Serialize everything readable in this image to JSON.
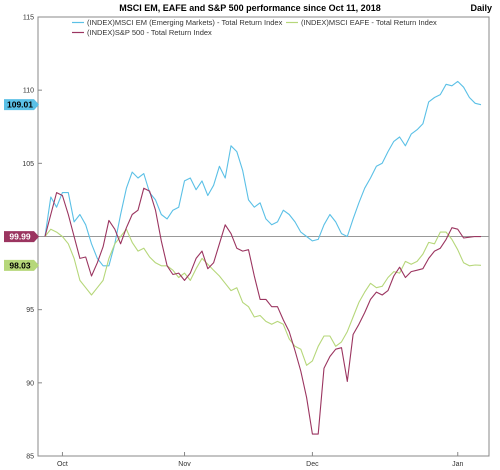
{
  "chart_data": {
    "type": "line",
    "title": "MSCI EM, EAFE and S&P 500 performance since Oct 11, 2018",
    "frequency": "Daily",
    "ylim": [
      85,
      115
    ],
    "yticks": [
      85,
      90,
      95,
      100,
      105,
      110,
      115
    ],
    "xticks": [
      {
        "label": "Oct",
        "x": 3
      },
      {
        "label": "Nov",
        "x": 24
      },
      {
        "label": "Dec",
        "x": 46
      },
      {
        "label": "Jan",
        "x": 71
      }
    ],
    "grid": false,
    "legend_position": "top-left",
    "reference_line": 100,
    "series": [
      {
        "name": "(INDEX)MSCI EM (Emerging Markets) - Total Return Index",
        "color": "#5bc0e6",
        "last_value_label": "109.01",
        "values": [
          100,
          102.7,
          102,
          103,
          103,
          101,
          101.5,
          100.8,
          99.5,
          98.5,
          98,
          98,
          99.5,
          101.5,
          103.3,
          104.4,
          104,
          104.3,
          103,
          102.5,
          101.5,
          101.2,
          101.8,
          102,
          103.8,
          104,
          103.2,
          103.8,
          102.8,
          103.5,
          104.8,
          104,
          106.2,
          105.8,
          104.5,
          102.5,
          102,
          102.3,
          101.2,
          100.8,
          101,
          101.8,
          101.5,
          101,
          100.3,
          100,
          99.7,
          99.8,
          100.8,
          101.5,
          101,
          100.2,
          100,
          101.2,
          102.3,
          103.3,
          104,
          104.8,
          105,
          105.8,
          106.5,
          106.8,
          106.2,
          107,
          107.3,
          107.7,
          109.2,
          109.5,
          109.7,
          110.4,
          110.3,
          110.6,
          110.2,
          109.5,
          109.1,
          109.01
        ]
      },
      {
        "name": "(INDEX)MSCI EAFE - Total Return Index",
        "color": "#b6d77a",
        "last_value_label": "98.03",
        "values": [
          100,
          100.5,
          100.3,
          100,
          99.5,
          98.5,
          97,
          96.5,
          96,
          96.5,
          97,
          98.5,
          99.5,
          100,
          100.5,
          99.6,
          99,
          99.2,
          98.6,
          98.2,
          98,
          98,
          97.7,
          97.2,
          97.5,
          97,
          97.8,
          98.5,
          98.1,
          97.7,
          97.3,
          96.8,
          96.3,
          96.5,
          95.5,
          95.2,
          94.5,
          94.6,
          94.2,
          94,
          94.2,
          94,
          93,
          92.5,
          92.3,
          91.2,
          91.5,
          92.5,
          93.2,
          93.2,
          92.5,
          92.8,
          93.5,
          94.5,
          95.5,
          96.2,
          96.8,
          96.5,
          96.6,
          97.2,
          97.6,
          97.5,
          98.3,
          98.1,
          98.3,
          98.8,
          99.6,
          99.5,
          100.3,
          100.3,
          99.8,
          99.1,
          98.2,
          98,
          98.05,
          98.03
        ]
      },
      {
        "name": "(INDEX)S&P 500 - Total Return Index",
        "color": "#9b3560",
        "last_value_label": "99.99",
        "values": [
          100,
          101.5,
          103,
          102.8,
          101.5,
          100,
          98.5,
          98.6,
          97.3,
          98.2,
          99.3,
          101.1,
          100.5,
          99.5,
          100.6,
          101.5,
          101.8,
          103.3,
          103.1,
          101.8,
          99.7,
          98,
          97.4,
          97.5,
          97,
          97.5,
          98.5,
          99,
          97.8,
          98.2,
          99.5,
          100.8,
          100.2,
          99.2,
          99,
          99.1,
          97.3,
          95.7,
          95.7,
          95.2,
          95.2,
          94.3,
          93.5,
          92.2,
          90.8,
          89,
          86.5,
          86.5,
          91,
          91.8,
          92.3,
          92.4,
          90.1,
          93.3,
          94,
          94.8,
          95.7,
          96.2,
          96,
          96.3,
          97.3,
          97.9,
          97.2,
          97.6,
          97.7,
          97.8,
          98.5,
          99,
          99.2,
          99.8,
          100.6,
          100.5,
          99.9,
          99.95,
          100,
          99.99
        ]
      }
    ]
  }
}
